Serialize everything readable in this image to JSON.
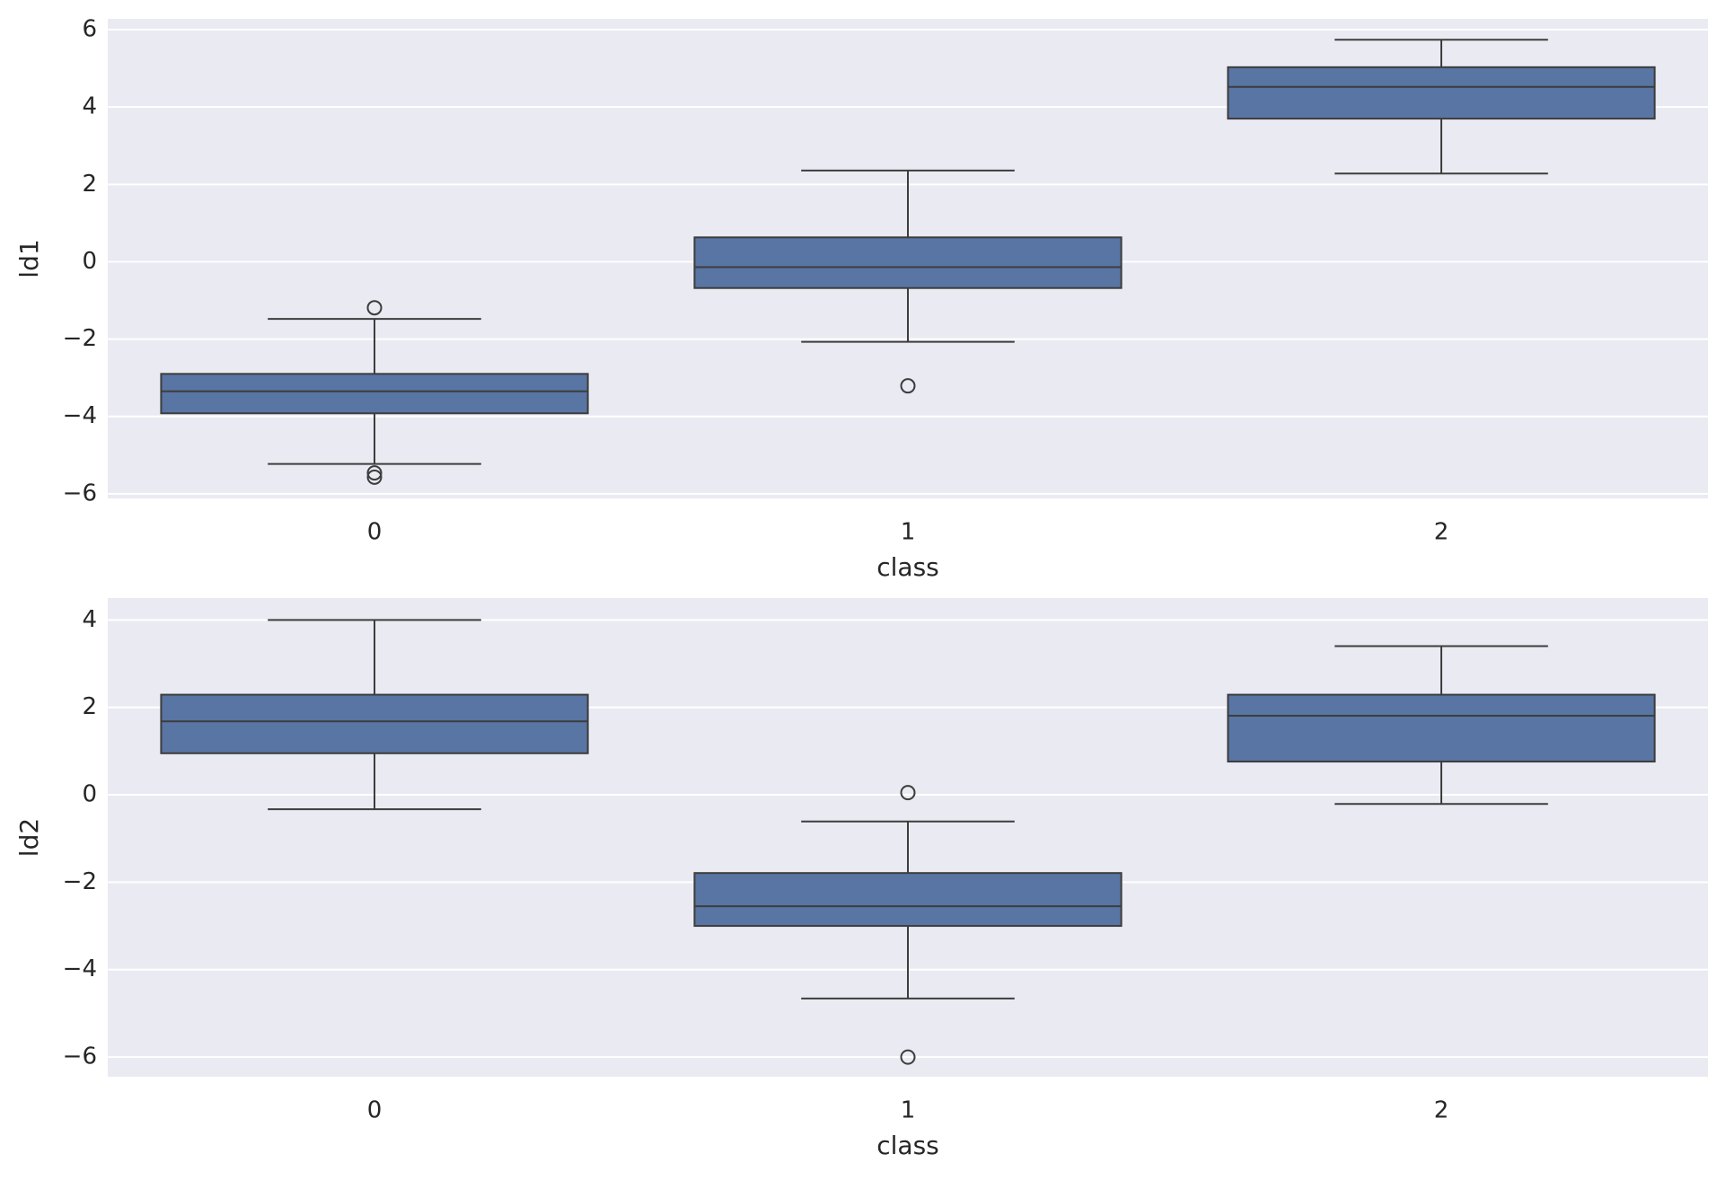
{
  "chart_data": [
    {
      "type": "box",
      "xlabel": "class",
      "ylabel": "ld1",
      "color": "#5875a4",
      "grid": true,
      "categories": [
        "0",
        "1",
        "2"
      ],
      "boxes": [
        {
          "whisker_low": -5.23,
          "q1": -3.92,
          "median": -3.35,
          "q3": -2.9,
          "whisker_high": -1.48,
          "outliers": [
            -1.19,
            -5.46,
            -5.57
          ]
        },
        {
          "whisker_low": -2.07,
          "q1": -0.68,
          "median": -0.14,
          "q3": 0.63,
          "whisker_high": 2.36,
          "outliers": [
            -3.21
          ]
        },
        {
          "whisker_low": 2.28,
          "q1": 3.7,
          "median": 4.52,
          "q3": 5.03,
          "whisker_high": 5.74,
          "outliers": []
        }
      ],
      "ylim": [
        -6.12,
        6.28
      ],
      "yticks": [
        {
          "value": -6,
          "label": "−6"
        },
        {
          "value": -4,
          "label": "−4"
        },
        {
          "value": -2,
          "label": "−2"
        },
        0,
        2,
        4,
        6
      ]
    },
    {
      "type": "box",
      "xlabel": "class",
      "ylabel": "ld2",
      "color": "#5875a4",
      "grid": true,
      "categories": [
        "0",
        "1",
        "2"
      ],
      "boxes": [
        {
          "whisker_low": -0.33,
          "q1": 0.95,
          "median": 1.68,
          "q3": 2.29,
          "whisker_high": 4.0,
          "outliers": []
        },
        {
          "whisker_low": -4.66,
          "q1": -3.0,
          "median": -2.55,
          "q3": -1.79,
          "whisker_high": -0.61,
          "outliers": [
            0.05,
            -6.0
          ]
        },
        {
          "whisker_low": -0.21,
          "q1": 0.76,
          "median": 1.81,
          "q3": 2.29,
          "whisker_high": 3.4,
          "outliers": []
        }
      ],
      "ylim": [
        -6.45,
        4.5
      ],
      "yticks": [
        {
          "value": -6,
          "label": "−6"
        },
        {
          "value": -4,
          "label": "−4"
        },
        {
          "value": -2,
          "label": "−2"
        },
        0,
        2,
        4
      ]
    }
  ]
}
